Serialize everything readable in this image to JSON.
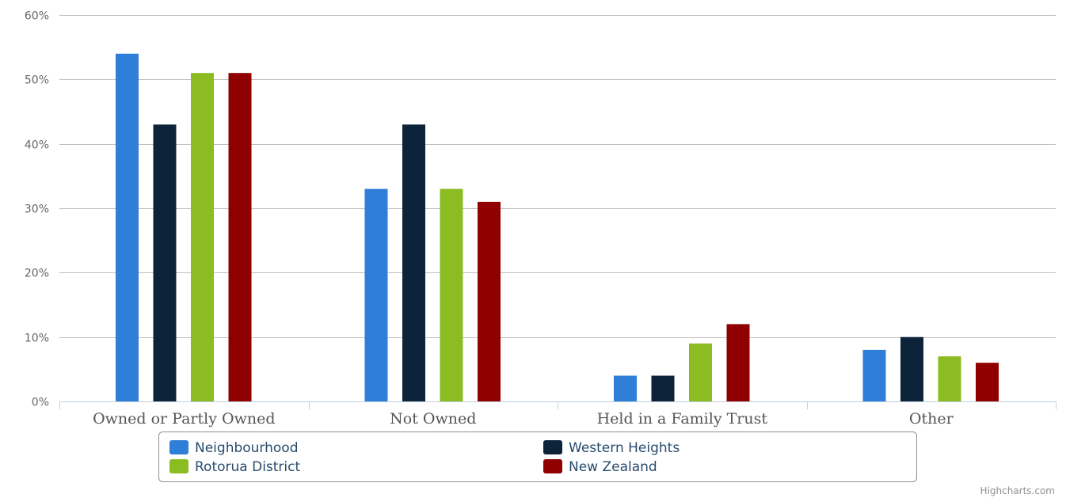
{
  "chart_data": {
    "type": "bar",
    "categories": [
      "Owned or Partly Owned",
      "Not Owned",
      "Held in a Family Trust",
      "Other"
    ],
    "series": [
      {
        "name": "Neighbourhood",
        "color": "#2f7ed8",
        "values": [
          54,
          33,
          4,
          8
        ]
      },
      {
        "name": "Western Heights",
        "color": "#0d233a",
        "values": [
          43,
          43,
          4,
          10
        ]
      },
      {
        "name": "Rotorua District",
        "color": "#8bbc21",
        "values": [
          51,
          33,
          9,
          7
        ]
      },
      {
        "name": "New Zealand",
        "color": "#910000",
        "values": [
          51,
          31,
          12,
          6
        ]
      }
    ],
    "yticks": [
      "0%",
      "10%",
      "20%",
      "30%",
      "40%",
      "50%",
      "60%"
    ],
    "ylim": [
      0,
      60
    ],
    "grid": true,
    "legend_position": "bottom"
  },
  "credits": "Highcharts.com"
}
